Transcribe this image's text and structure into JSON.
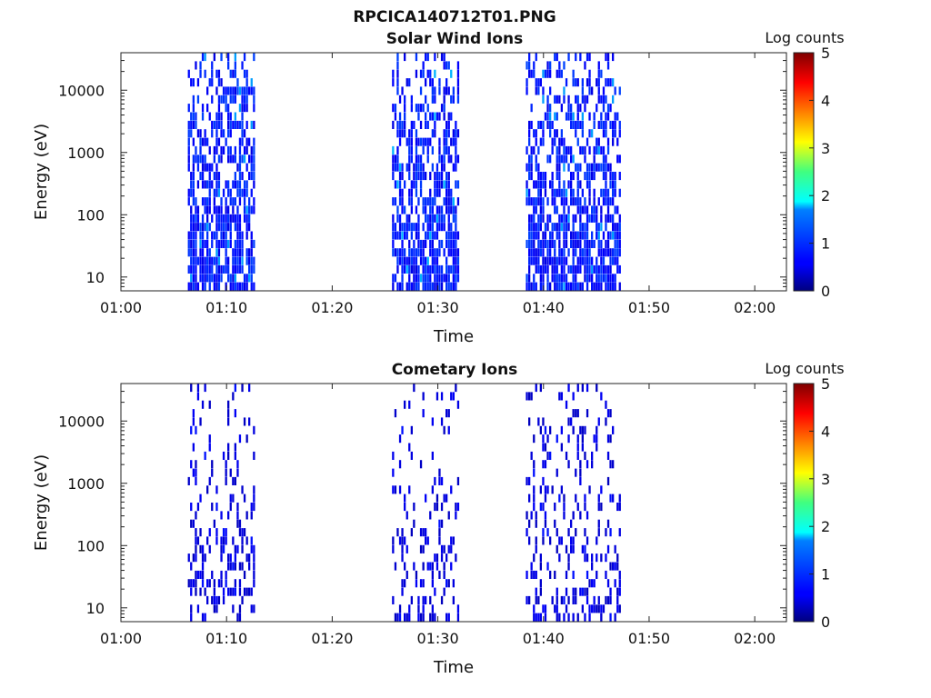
{
  "figure": {
    "title": "RPCICA140712T01.PNG"
  },
  "chart_data": [
    {
      "type": "heatmap",
      "title": "Solar Wind Ions",
      "xlabel": "Time",
      "ylabel": "Energy (eV)",
      "y_scale": "log",
      "x_ticks": [
        "01:00",
        "01:10",
        "01:20",
        "01:30",
        "01:40",
        "01:50",
        "02:00"
      ],
      "y_ticks": [
        "10",
        "100",
        "1000",
        "10000"
      ],
      "xlim": [
        "01:00",
        "02:03"
      ],
      "ylim": [
        6,
        40000
      ],
      "colorbar": {
        "label": "Log counts",
        "range": [
          0,
          5
        ],
        "ticks": [
          "0",
          "1",
          "2",
          "3",
          "4",
          "5"
        ],
        "colormap": "jet"
      },
      "grid": false,
      "data_blocks": [
        {
          "start": "01:06:20",
          "end": "01:12:40",
          "max_energy_ev": 40000,
          "typical_log_counts": 0.8,
          "peak_log_counts": 1.4
        },
        {
          "start": "01:25:40",
          "end": "01:32:00",
          "max_energy_ev": 40000,
          "typical_log_counts": 0.8,
          "peak_log_counts": 1.5
        },
        {
          "start": "01:38:20",
          "end": "01:47:20",
          "max_energy_ev": 40000,
          "typical_log_counts": 0.8,
          "peak_log_counts": 1.4
        }
      ],
      "density": 0.65
    },
    {
      "type": "heatmap",
      "title": "Cometary Ions",
      "xlabel": "Time",
      "ylabel": "Energy (eV)",
      "y_scale": "log",
      "x_ticks": [
        "01:00",
        "01:10",
        "01:20",
        "01:30",
        "01:40",
        "01:50",
        "02:00"
      ],
      "y_ticks": [
        "10",
        "100",
        "1000",
        "10000"
      ],
      "xlim": [
        "01:00",
        "02:03"
      ],
      "ylim": [
        6,
        40000
      ],
      "colorbar": {
        "label": "Log counts",
        "range": [
          0,
          5
        ],
        "ticks": [
          "0",
          "1",
          "2",
          "3",
          "4",
          "5"
        ],
        "colormap": "jet"
      },
      "grid": false,
      "data_blocks": [
        {
          "start": "01:06:20",
          "end": "01:12:40",
          "max_energy_ev": 40000,
          "typical_log_counts": 0.5,
          "peak_log_counts": 0.7
        },
        {
          "start": "01:25:40",
          "end": "01:32:00",
          "max_energy_ev": 40000,
          "typical_log_counts": 0.5,
          "peak_log_counts": 0.7
        },
        {
          "start": "01:38:20",
          "end": "01:47:20",
          "max_energy_ev": 40000,
          "typical_log_counts": 0.5,
          "peak_log_counts": 0.7
        }
      ],
      "density": 0.25
    }
  ]
}
